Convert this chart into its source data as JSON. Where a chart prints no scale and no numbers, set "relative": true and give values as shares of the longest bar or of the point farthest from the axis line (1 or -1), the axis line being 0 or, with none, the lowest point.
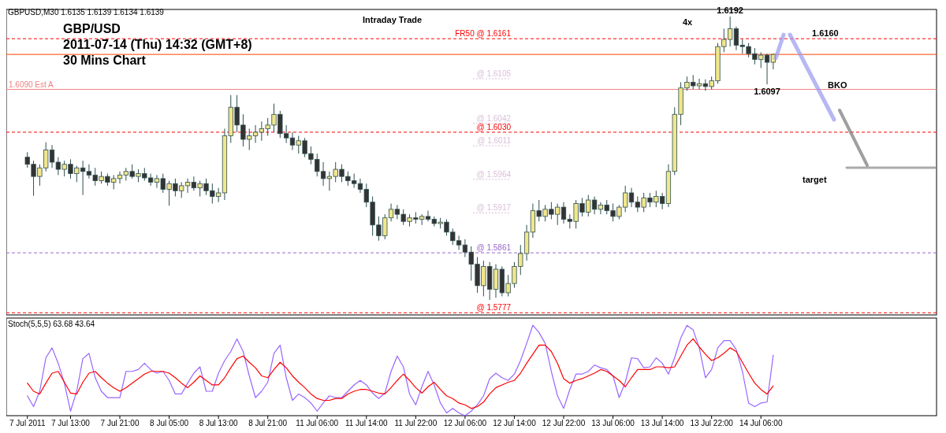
{
  "chart_data": [
    {
      "type": "candlestick",
      "title": "GBP/USD",
      "subtitle": "2011-07-14 (Thu) 14:32 (GMT+8)",
      "annotations": [
        "GBPUSD,M30  1.6135 1.6139 1.6134 1.6139",
        "30 Mins Chart",
        "Intraday Trade",
        "4x",
        "1.6160",
        "BKO",
        "target",
        {
          "text": "1.6192",
          "y": 1.6192
        },
        {
          "text": "1.6097",
          "y": 1.6097
        }
      ],
      "categories": [
        null,
        null,
        null,
        null,
        null,
        null,
        null,
        null,
        null,
        null,
        null,
        null,
        null,
        null,
        null,
        null,
        null,
        null,
        null,
        null,
        null,
        null,
        null,
        null,
        null,
        null,
        null,
        null,
        null,
        null,
        null,
        null,
        null,
        null,
        null,
        null,
        null,
        null,
        null,
        null,
        null,
        null,
        null,
        null,
        null,
        null,
        null,
        null,
        null,
        null,
        null,
        null,
        null,
        null,
        null,
        null,
        null,
        null,
        null,
        null,
        null,
        null,
        null,
        null,
        null,
        null,
        null,
        null,
        null,
        null,
        null,
        null,
        null,
        null,
        null,
        null,
        null,
        null,
        null,
        null,
        null,
        null,
        null,
        null,
        null,
        null,
        null,
        null,
        null,
        null,
        null,
        null,
        null,
        null,
        null,
        null,
        null,
        null,
        null,
        null,
        null,
        null,
        null,
        null,
        null,
        null,
        null,
        null,
        null,
        null,
        null,
        null,
        null,
        null,
        null,
        null,
        null,
        null,
        null,
        null,
        null,
        null
      ],
      "ohlc": [
        [
          1.5995,
          1.6002,
          1.598,
          1.5985
        ],
        [
          1.5985,
          1.599,
          1.5941,
          1.5968
        ],
        [
          1.5968,
          1.5985,
          1.5955,
          1.598
        ],
        [
          1.598,
          1.6016,
          1.5975,
          1.6005
        ],
        [
          1.6005,
          1.6012,
          1.598,
          1.5988
        ],
        [
          1.5988,
          1.5995,
          1.597,
          1.5978
        ],
        [
          1.5978,
          1.599,
          1.5968,
          1.5985
        ],
        [
          1.5985,
          1.5992,
          1.5965,
          1.5972
        ],
        [
          1.5972,
          1.5983,
          1.596,
          1.598
        ],
        [
          1.598,
          1.599,
          1.5942,
          1.5975
        ],
        [
          1.5975,
          1.5985,
          1.5965,
          1.597
        ],
        [
          1.597,
          1.598,
          1.5955,
          1.5962
        ],
        [
          1.5962,
          1.5975,
          1.5958,
          1.5968
        ],
        [
          1.5968,
          1.5972,
          1.5955,
          1.596
        ],
        [
          1.596,
          1.597,
          1.595,
          1.5965
        ],
        [
          1.5965,
          1.5975,
          1.5958,
          1.597
        ],
        [
          1.597,
          1.598,
          1.5962,
          1.5975
        ],
        [
          1.5975,
          1.5985,
          1.5965,
          1.5968
        ],
        [
          1.5968,
          1.5978,
          1.596,
          1.5972
        ],
        [
          1.5972,
          1.598,
          1.5962,
          1.5966
        ],
        [
          1.5966,
          1.5972,
          1.5955,
          1.596
        ],
        [
          1.596,
          1.597,
          1.5952,
          1.5965
        ],
        [
          1.5965,
          1.5972,
          1.5945,
          1.595
        ],
        [
          1.595,
          1.5962,
          1.5927,
          1.5958
        ],
        [
          1.5958,
          1.5965,
          1.594,
          1.5948
        ],
        [
          1.5948,
          1.596,
          1.5938,
          1.5955
        ],
        [
          1.5955,
          1.5965,
          1.5945,
          1.596
        ],
        [
          1.596,
          1.5968,
          1.5948,
          1.5952
        ],
        [
          1.5952,
          1.5962,
          1.594,
          1.5958
        ],
        [
          1.5958,
          1.5965,
          1.5942,
          1.5948
        ],
        [
          1.5948,
          1.5958,
          1.593,
          1.594
        ],
        [
          1.594,
          1.5952,
          1.5932,
          1.5945
        ],
        [
          1.5945,
          1.6035,
          1.5935,
          1.6025
        ],
        [
          1.6025,
          1.6082,
          1.6015,
          1.6065
        ],
        [
          1.6065,
          1.6082,
          1.603,
          1.604
        ],
        [
          1.604,
          1.6055,
          1.601,
          1.602
        ],
        [
          1.602,
          1.6035,
          1.6005,
          1.6025
        ],
        [
          1.6025,
          1.604,
          1.6015,
          1.603
        ],
        [
          1.603,
          1.6045,
          1.6018,
          1.6035
        ],
        [
          1.6035,
          1.605,
          1.6025,
          1.604
        ],
        [
          1.604,
          1.607,
          1.603,
          1.6055
        ],
        [
          1.6055,
          1.606,
          1.6022,
          1.6028
        ],
        [
          1.6028,
          1.604,
          1.6015,
          1.6022
        ],
        [
          1.6022,
          1.603,
          1.6005,
          1.6012
        ],
        [
          1.6012,
          1.6025,
          1.6,
          1.6018
        ],
        [
          1.6018,
          1.6022,
          1.5995,
          1.6
        ],
        [
          1.6,
          1.601,
          1.5985,
          1.5992
        ],
        [
          1.5992,
          1.6,
          1.5968,
          1.5975
        ],
        [
          1.5975,
          1.5988,
          1.5955,
          1.5965
        ],
        [
          1.5965,
          1.5975,
          1.5948,
          1.5968
        ],
        [
          1.5968,
          1.5988,
          1.596,
          1.5978
        ],
        [
          1.5978,
          1.5985,
          1.596,
          1.5968
        ],
        [
          1.5968,
          1.5975,
          1.5955,
          1.5962
        ],
        [
          1.5962,
          1.5972,
          1.5952,
          1.5958
        ],
        [
          1.5958,
          1.5965,
          1.5945,
          1.595
        ],
        [
          1.595,
          1.5958,
          1.5925,
          1.5932
        ],
        [
          1.5932,
          1.594,
          1.5885,
          1.59
        ],
        [
          1.59,
          1.5912,
          1.5878,
          1.5885
        ],
        [
          1.5885,
          1.5915,
          1.588,
          1.591
        ],
        [
          1.591,
          1.593,
          1.5905,
          1.5922
        ],
        [
          1.5922,
          1.5928,
          1.5908,
          1.5915
        ],
        [
          1.5915,
          1.5922,
          1.59,
          1.5905
        ],
        [
          1.5905,
          1.5915,
          1.5898,
          1.591
        ],
        [
          1.591,
          1.5918,
          1.5902,
          1.5908
        ],
        [
          1.5908,
          1.5915,
          1.59,
          1.5912
        ],
        [
          1.5912,
          1.592,
          1.5905,
          1.5908
        ],
        [
          1.5908,
          1.5912,
          1.5898,
          1.5902
        ],
        [
          1.5902,
          1.591,
          1.5895,
          1.5904
        ],
        [
          1.5904,
          1.5908,
          1.5885,
          1.589
        ],
        [
          1.589,
          1.5895,
          1.5872,
          1.5878
        ],
        [
          1.5878,
          1.5885,
          1.5865,
          1.5872
        ],
        [
          1.5872,
          1.588,
          1.5855,
          1.5862
        ],
        [
          1.5862,
          1.587,
          1.5822,
          1.5845
        ],
        [
          1.5845,
          1.5855,
          1.5805,
          1.5815
        ],
        [
          1.5815,
          1.585,
          1.58,
          1.5842
        ],
        [
          1.5842,
          1.5848,
          1.5795,
          1.581
        ],
        [
          1.581,
          1.5845,
          1.5798,
          1.5838
        ],
        [
          1.5838,
          1.5842,
          1.58,
          1.5805
        ],
        [
          1.5805,
          1.583,
          1.58,
          1.5818
        ],
        [
          1.5818,
          1.5848,
          1.5812,
          1.5842
        ],
        [
          1.5842,
          1.5872,
          1.583,
          1.586
        ],
        [
          1.586,
          1.59,
          1.585,
          1.589
        ],
        [
          1.589,
          1.593,
          1.5882,
          1.592
        ],
        [
          1.592,
          1.5935,
          1.5905,
          1.5912
        ],
        [
          1.5912,
          1.5928,
          1.5905,
          1.5922
        ],
        [
          1.5922,
          1.5932,
          1.5908,
          1.5915
        ],
        [
          1.5915,
          1.593,
          1.59,
          1.5925
        ],
        [
          1.5925,
          1.5932,
          1.5902,
          1.5908
        ],
        [
          1.5908,
          1.5915,
          1.5895,
          1.5905
        ],
        [
          1.5905,
          1.5935,
          1.5895,
          1.593
        ],
        [
          1.593,
          1.5938,
          1.5912,
          1.5918
        ],
        [
          1.5918,
          1.5942,
          1.5912,
          1.5935
        ],
        [
          1.5935,
          1.594,
          1.5915,
          1.5922
        ],
        [
          1.5922,
          1.5932,
          1.5915,
          1.5928
        ],
        [
          1.5928,
          1.5935,
          1.5915,
          1.592
        ],
        [
          1.592,
          1.593,
          1.5905,
          1.5912
        ],
        [
          1.5912,
          1.5928,
          1.5908,
          1.5925
        ],
        [
          1.5925,
          1.5955,
          1.5918,
          1.5945
        ],
        [
          1.5945,
          1.5952,
          1.5925,
          1.5932
        ],
        [
          1.5932,
          1.594,
          1.5918,
          1.5925
        ],
        [
          1.5925,
          1.5945,
          1.5918,
          1.5938
        ],
        [
          1.5938,
          1.5945,
          1.5925,
          1.5932
        ],
        [
          1.5932,
          1.5948,
          1.5925,
          1.594
        ],
        [
          1.594,
          1.5945,
          1.5922,
          1.593
        ],
        [
          1.593,
          1.5985,
          1.5925,
          1.5975
        ],
        [
          1.5975,
          1.6065,
          1.597,
          1.6055
        ],
        [
          1.6055,
          1.61,
          1.604,
          1.6092
        ],
        [
          1.6092,
          1.6108,
          1.6088,
          1.61
        ],
        [
          1.61,
          1.611,
          1.609,
          1.6095
        ],
        [
          1.6095,
          1.6105,
          1.609,
          1.6098
        ],
        [
          1.6098,
          1.6104,
          1.6088,
          1.6094
        ],
        [
          1.6094,
          1.6108,
          1.609,
          1.6102
        ],
        [
          1.6102,
          1.6155,
          1.6098,
          1.615
        ],
        [
          1.615,
          1.6175,
          1.6142,
          1.616
        ],
        [
          1.616,
          1.6192,
          1.615,
          1.6175
        ],
        [
          1.6175,
          1.6178,
          1.6145,
          1.6152
        ],
        [
          1.6152,
          1.616,
          1.614,
          1.615
        ],
        [
          1.615,
          1.6155,
          1.6135,
          1.614
        ],
        [
          1.614,
          1.6148,
          1.6125,
          1.6132
        ],
        [
          1.6132,
          1.6142,
          1.612,
          1.6138
        ],
        [
          1.6138,
          1.614,
          1.6097,
          1.6128
        ],
        [
          1.6128,
          1.614,
          1.6118,
          1.6139
        ]
      ],
      "ylim": [
        1.5774,
        1.6202
      ],
      "ref_lines": [
        {
          "axis": "y",
          "value": 1.6161,
          "label": "FR50 @ 1.6161",
          "color": "#ff0000",
          "line_style": "dashed"
        },
        {
          "axis": "y",
          "value": 1.6139,
          "color": "#ff4500",
          "line_style": "solid"
        },
        {
          "axis": "y",
          "value": 1.6105,
          "label": "@ 1.6105",
          "color": "#d8bfd8",
          "line_style": "dotted"
        },
        {
          "axis": "y",
          "value": 1.609,
          "label": "1.6090 Est A",
          "color": "#f08080",
          "line_style": "solid"
        },
        {
          "axis": "y",
          "value": 1.6042,
          "label": "@ 1.6042",
          "color": "#d8bfd8",
          "line_style": "dotted"
        },
        {
          "axis": "y",
          "value": 1.603,
          "label": "@ 1.6030",
          "color": "#ff0000",
          "line_style": "dashed"
        },
        {
          "axis": "y",
          "value": 1.6011,
          "label": "@ 1.6011",
          "color": "#d8bfd8",
          "line_style": "dotted"
        },
        {
          "axis": "y",
          "value": 1.5964,
          "label": "@ 1.5964",
          "color": "#d8bfd8",
          "line_style": "dotted"
        },
        {
          "axis": "y",
          "value": 1.5917,
          "label": "@ 1.5917",
          "color": "#d8bfd8",
          "line_style": "dotted"
        },
        {
          "axis": "y",
          "value": 1.5861,
          "label": "@ 1.5861",
          "color": "#9966cc",
          "line_style": "dashed"
        },
        {
          "axis": "y",
          "value": 1.5777,
          "label": "@ 1.5777",
          "color": "#ff0000",
          "line_style": "dashed"
        }
      ],
      "tick_labels": false
    },
    {
      "type": "line",
      "title": "Stoch(5,5,5) 63.68 43.64",
      "categories": [
        "7 Jul 2011",
        null,
        null,
        null,
        null,
        null,
        null,
        "7 Jul 13:00",
        null,
        null,
        null,
        null,
        null,
        null,
        null,
        "7 Jul 21:00",
        null,
        null,
        null,
        null,
        null,
        null,
        null,
        "8 Jul 05:00",
        null,
        null,
        null,
        null,
        null,
        null,
        null,
        "8 Jul 13:00",
        null,
        null,
        null,
        null,
        null,
        null,
        null,
        "8 Jul 21:00",
        null,
        null,
        null,
        null,
        null,
        null,
        null,
        "11 Jul 06:00",
        null,
        null,
        null,
        null,
        null,
        null,
        null,
        "11 Jul 14:00",
        null,
        null,
        null,
        null,
        null,
        null,
        null,
        "11 Jul 22:00",
        null,
        null,
        null,
        null,
        null,
        null,
        null,
        "12 Jul 06:00",
        null,
        null,
        null,
        null,
        null,
        null,
        null,
        "12 Jul 14:00",
        null,
        null,
        null,
        null,
        null,
        null,
        null,
        "12 Jul 22:00",
        null,
        null,
        null,
        null,
        null,
        null,
        null,
        "13 Jul 06:00",
        null,
        null,
        null,
        null,
        null,
        null,
        null,
        "13 Jul 14:00",
        null,
        null,
        null,
        null,
        null,
        null,
        null,
        "13 Jul 22:00",
        null,
        null,
        null,
        null,
        null,
        null,
        null,
        "14 Jul 06:00",
        null,
        null
      ],
      "series": [
        {
          "color": "#9966ff",
          "values": [
            0.22,
            0.1,
            0.27,
            0.64,
            0.75,
            0.58,
            0.36,
            0.05,
            0.27,
            0.63,
            0.69,
            0.42,
            0.27,
            0.2,
            0.2,
            0.2,
            0.49,
            0.49,
            0.51,
            0.58,
            0.51,
            0.47,
            0.49,
            0.39,
            0.24,
            0.24,
            0.36,
            0.47,
            0.54,
            0.27,
            0.27,
            0.47,
            0.61,
            0.71,
            0.85,
            0.71,
            0.44,
            0.2,
            0.27,
            0.37,
            0.69,
            0.78,
            0.42,
            0.17,
            0.24,
            0.2,
            0.14,
            0.05,
            0.14,
            0.22,
            0.2,
            0.2,
            0.27,
            0.34,
            0.39,
            0.34,
            0.25,
            0.19,
            0.25,
            0.49,
            0.66,
            0.54,
            0.24,
            0.12,
            0.32,
            0.49,
            0.34,
            0.14,
            0.03,
            0.08,
            0.03,
            0,
            0.05,
            0.12,
            0.22,
            0.41,
            0.47,
            0.42,
            0.39,
            0.46,
            0.61,
            0.8,
            1,
            0.92,
            0.8,
            0.49,
            0.22,
            0.08,
            0.29,
            0.46,
            0.46,
            0.49,
            0.56,
            0.53,
            0.51,
            0.44,
            0.2,
            0.37,
            0.64,
            0.63,
            0.53,
            0.54,
            0.64,
            0.58,
            0.46,
            0.64,
            0.86,
            1,
            0.95,
            0.75,
            0.42,
            0.51,
            0.75,
            0.83,
            0.83,
            0.73,
            0.49,
            0.14,
            0.1,
            0.14,
            0.15,
            0.67
          ]
        },
        {
          "color": "#ff0000",
          "values": [
            0.36,
            0.27,
            0.24,
            0.36,
            0.47,
            0.49,
            0.37,
            0.25,
            0.24,
            0.37,
            0.47,
            0.49,
            0.42,
            0.36,
            0.31,
            0.27,
            0.31,
            0.36,
            0.41,
            0.46,
            0.49,
            0.49,
            0.49,
            0.47,
            0.42,
            0.36,
            0.31,
            0.37,
            0.44,
            0.39,
            0.34,
            0.34,
            0.42,
            0.53,
            0.63,
            0.66,
            0.59,
            0.53,
            0.44,
            0.42,
            0.51,
            0.59,
            0.53,
            0.44,
            0.37,
            0.31,
            0.24,
            0.19,
            0.17,
            0.17,
            0.19,
            0.19,
            0.24,
            0.27,
            0.29,
            0.29,
            0.27,
            0.25,
            0.24,
            0.31,
            0.39,
            0.46,
            0.39,
            0.31,
            0.25,
            0.32,
            0.37,
            0.29,
            0.22,
            0.19,
            0.14,
            0.12,
            0.08,
            0.1,
            0.15,
            0.24,
            0.31,
            0.34,
            0.37,
            0.39,
            0.47,
            0.58,
            0.68,
            0.78,
            0.78,
            0.71,
            0.58,
            0.41,
            0.36,
            0.39,
            0.41,
            0.44,
            0.47,
            0.51,
            0.49,
            0.44,
            0.39,
            0.32,
            0.42,
            0.51,
            0.51,
            0.51,
            0.54,
            0.54,
            0.53,
            0.54,
            0.66,
            0.78,
            0.85,
            0.76,
            0.68,
            0.61,
            0.64,
            0.69,
            0.75,
            0.71,
            0.59,
            0.47,
            0.36,
            0.29,
            0.24,
            0.33
          ]
        }
      ],
      "relative": true,
      "tick_labels": "x"
    }
  ]
}
